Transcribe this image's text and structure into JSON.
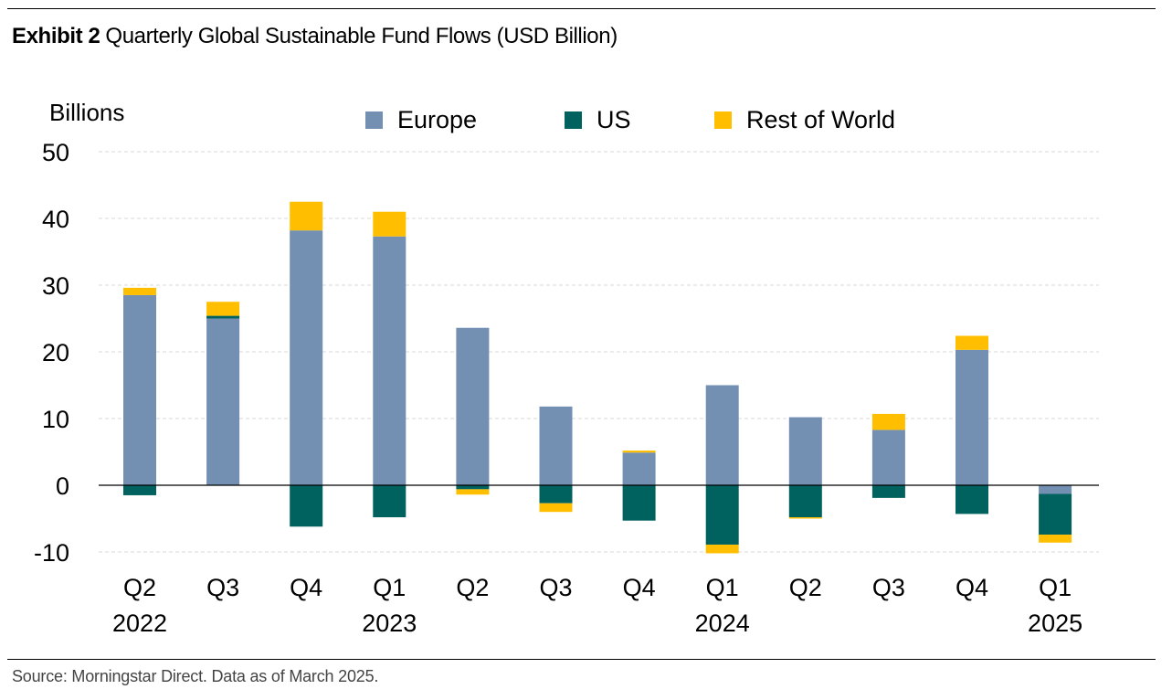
{
  "header": {
    "exhibit": "Exhibit 2",
    "title": "Quarterly Global Sustainable Fund Flows (USD Billion)"
  },
  "footer": {
    "source": "Source: Morningstar Direct. Data as of March 2025."
  },
  "colors": {
    "europe": "#7390B3",
    "us": "#00625F",
    "row": "#FFBF00",
    "grid": "#d9d9d9",
    "axis": "#000000"
  },
  "chart_data": {
    "type": "bar",
    "stacked": true,
    "title": "Quarterly Global Sustainable Fund Flows (USD Billion)",
    "ylabel": "Billions",
    "xlabel": "",
    "ylim": [
      -10,
      50
    ],
    "yticks": [
      50,
      40,
      30,
      20,
      10,
      0,
      -10
    ],
    "ytick_labels": [
      "50",
      "40",
      "30",
      "20",
      "10",
      "0",
      "-10"
    ],
    "grid": true,
    "legend_position": "top-center",
    "categories": [
      "Q2 2022",
      "Q3 2022",
      "Q4 2022",
      "Q1 2023",
      "Q2 2023",
      "Q3 2023",
      "Q4 2023",
      "Q1 2024",
      "Q2 2024",
      "Q3 2024",
      "Q4 2024",
      "Q1 2025"
    ],
    "quarter_labels": [
      "Q2",
      "Q3",
      "Q4",
      "Q1",
      "Q2",
      "Q3",
      "Q4",
      "Q1",
      "Q2",
      "Q3",
      "Q4",
      "Q1"
    ],
    "year_labels": [
      "2022",
      "",
      "",
      "2023",
      "",
      "",
      "",
      "2024",
      "",
      "",
      "",
      "2025"
    ],
    "series": [
      {
        "name": "Europe",
        "key": "europe",
        "values": [
          28.5,
          25.0,
          38.2,
          37.3,
          23.6,
          11.8,
          4.9,
          15.0,
          10.2,
          8.3,
          20.3,
          -1.3
        ]
      },
      {
        "name": "US",
        "key": "us",
        "values": [
          -1.5,
          0.4,
          -6.2,
          -4.8,
          -0.6,
          -2.7,
          -5.3,
          -8.9,
          -4.8,
          -1.9,
          -4.3,
          -6.1
        ]
      },
      {
        "name": "Rest of World",
        "key": "row",
        "values": [
          1.1,
          2.1,
          4.3,
          3.7,
          -0.8,
          -1.3,
          0.3,
          -1.3,
          -0.2,
          2.4,
          2.1,
          -1.2
        ]
      }
    ]
  }
}
